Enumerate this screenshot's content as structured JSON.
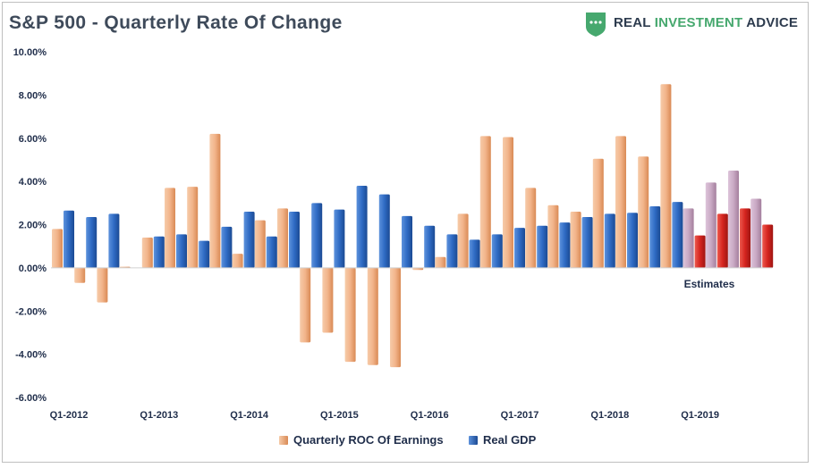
{
  "header": {
    "title": "S&P 500 - Quarterly Rate Of Change",
    "brand_part1": "REAL ",
    "brand_part2": "INVESTMENT",
    "brand_part3": " ADVICE"
  },
  "legend": {
    "earnings_label": "Quarterly ROC Of Earnings",
    "gdp_label": "Real GDP"
  },
  "colors": {
    "earnings": "#f2b48a",
    "gdp": "#2f6bc4",
    "earnings_estimate": "#c9a9c4",
    "gdp_estimate": "#d5241f",
    "brand_green": "#46a86e",
    "text": "#1f2d4a"
  },
  "chart_data": {
    "type": "bar",
    "title": "S&P 500 - Quarterly Rate Of Change",
    "categories": [
      "Q1-2012",
      "Q2-2012",
      "Q3-2012",
      "Q4-2012",
      "Q1-2013",
      "Q2-2013",
      "Q3-2013",
      "Q4-2013",
      "Q1-2014",
      "Q2-2014",
      "Q3-2014",
      "Q4-2014",
      "Q1-2015",
      "Q2-2015",
      "Q3-2015",
      "Q4-2015",
      "Q1-2016",
      "Q2-2016",
      "Q3-2016",
      "Q4-2016",
      "Q1-2017",
      "Q2-2017",
      "Q3-2017",
      "Q4-2017",
      "Q1-2018",
      "Q2-2018",
      "Q3-2018",
      "Q4-2018",
      "Q1-2019",
      "Q2-2019",
      "Q3-2019",
      "Q4-2019"
    ],
    "x_tick_labels": [
      "Q1-2012",
      "Q1-2013",
      "Q1-2014",
      "Q1-2015",
      "Q1-2016",
      "Q1-2017",
      "Q1-2018",
      "Q1-2019"
    ],
    "series": [
      {
        "name": "Quarterly ROC Of Earnings",
        "values": [
          1.8,
          -0.7,
          -1.6,
          0.05,
          1.4,
          3.7,
          3.75,
          6.2,
          0.65,
          2.2,
          2.75,
          -3.45,
          -3.0,
          -4.35,
          -4.5,
          -4.6,
          -0.1,
          0.5,
          2.5,
          6.1,
          6.05,
          3.7,
          2.9,
          2.6,
          5.05,
          6.1,
          5.15,
          8.5,
          2.75,
          3.95,
          4.5,
          3.2
        ]
      },
      {
        "name": "Real GDP",
        "values": [
          2.65,
          2.35,
          2.5,
          null,
          1.45,
          1.55,
          1.25,
          1.9,
          2.6,
          1.45,
          2.6,
          3.0,
          2.7,
          3.8,
          3.4,
          2.4,
          1.95,
          1.55,
          1.3,
          1.55,
          1.85,
          1.95,
          2.1,
          2.35,
          2.5,
          2.55,
          2.85,
          3.05,
          1.5,
          2.5,
          2.75,
          2.0
        ]
      }
    ],
    "estimate_start_index": 28,
    "annotation": "Estimates",
    "ylim": [
      -6,
      10
    ],
    "y_ticks": [
      -6,
      -4,
      -2,
      0,
      2,
      4,
      6,
      8,
      10
    ],
    "y_tick_labels": [
      "-6.00%",
      "-4.00%",
      "-2.00%",
      "0.00%",
      "2.00%",
      "4.00%",
      "6.00%",
      "8.00%",
      "10.00%"
    ],
    "grid": false,
    "legend_position": "bottom"
  }
}
